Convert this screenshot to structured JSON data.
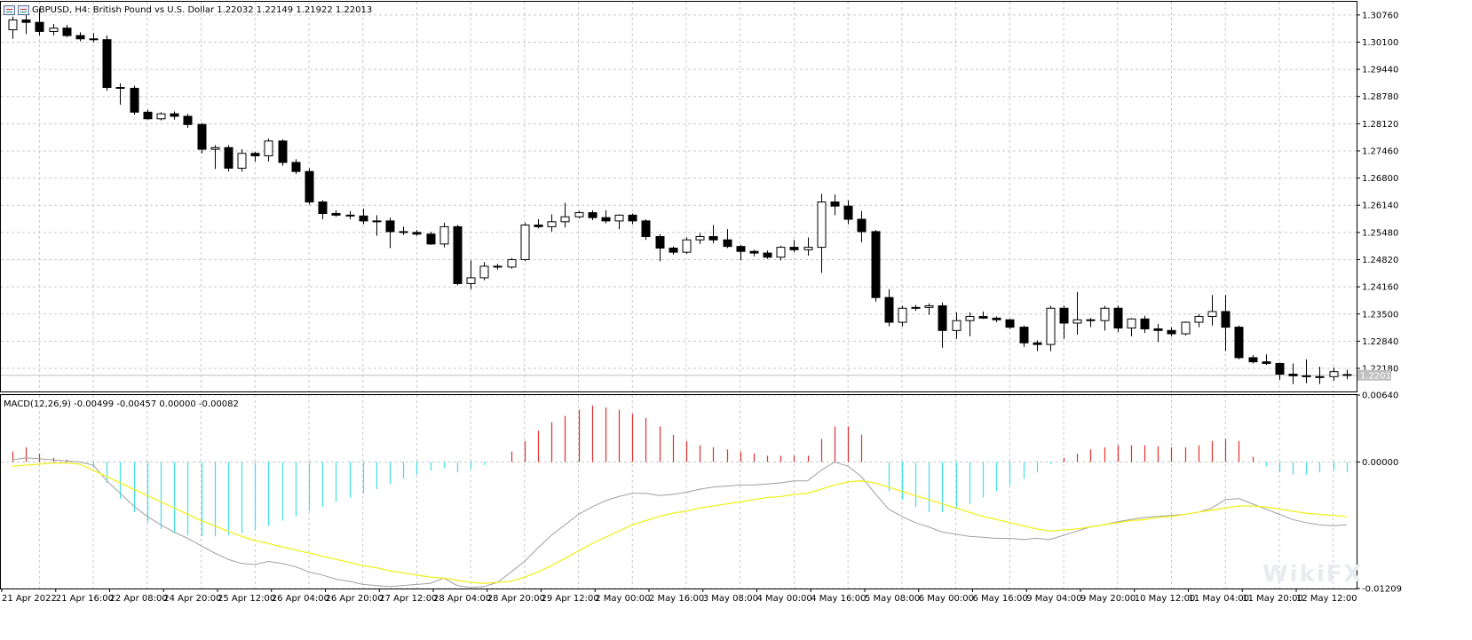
{
  "header": {
    "symbol_line": "GBPUSD, H4:  British Pound vs U.S. Dollar  1.22032 1.22149 1.21922 1.22013"
  },
  "macd_header": "MACD(12,26,9) -0.00499 -0.00457 0.00000 -0.00082",
  "watermark": "WikiFX",
  "colors": {
    "background": "#ffffff",
    "grid": "#c8c8c8",
    "bull_body": "#ffffff",
    "bear_body": "#000000",
    "hist_positive": "#e03030",
    "hist_negative": "#40e0e8",
    "macd_line": "#a0a0a0",
    "signal_line": "#f0f020",
    "price_tag": "#c0c0c0"
  },
  "chart_data": [
    {
      "type": "candlestick",
      "title": "GBPUSD, H4",
      "ylim": [
        1.2162,
        1.3108
      ],
      "y_ticks": [
        "1.30760",
        "1.30100",
        "1.29440",
        "1.28780",
        "1.28120",
        "1.27460",
        "1.26800",
        "1.26140",
        "1.25480",
        "1.24820",
        "1.24160",
        "1.23500",
        "1.22840",
        "1.22180"
      ],
      "current_price": "1.22013",
      "x_ticks": [
        {
          "bar": 0,
          "label": "21 Apr 2022"
        },
        {
          "bar": 4,
          "label": "21 Apr 16:00"
        },
        {
          "bar": 8,
          "label": "22 Apr 08:00"
        },
        {
          "bar": 12,
          "label": "24 Apr 20:00"
        },
        {
          "bar": 16,
          "label": "25 Apr 12:00"
        },
        {
          "bar": 20,
          "label": "26 Apr 04:00"
        },
        {
          "bar": 24,
          "label": "26 Apr 20:00"
        },
        {
          "bar": 28,
          "label": "27 Apr 12:00"
        },
        {
          "bar": 32,
          "label": "28 Apr 04:00"
        },
        {
          "bar": 36,
          "label": "28 Apr 20:00"
        },
        {
          "bar": 40,
          "label": "29 Apr 12:00"
        },
        {
          "bar": 44,
          "label": "2 May 00:00"
        },
        {
          "bar": 48,
          "label": "2 May 16:00"
        },
        {
          "bar": 52,
          "label": "3 May 08:00"
        },
        {
          "bar": 56,
          "label": "4 May 00:00"
        },
        {
          "bar": 60,
          "label": "4 May 16:00"
        },
        {
          "bar": 64,
          "label": "5 May 08:00"
        },
        {
          "bar": 68,
          "label": "6 May 00:00"
        },
        {
          "bar": 72,
          "label": "6 May 16:00"
        },
        {
          "bar": 76,
          "label": "9 May 04:00"
        },
        {
          "bar": 80,
          "label": "9 May 20:00"
        },
        {
          "bar": 84,
          "label": "10 May 12:00"
        },
        {
          "bar": 88,
          "label": "11 May 04:00"
        },
        {
          "bar": 92,
          "label": "11 May 20:00"
        },
        {
          "bar": 96,
          "label": "12 May 12:00"
        }
      ],
      "ohlc": [
        [
          1.304,
          1.3072,
          1.3018,
          1.3064
        ],
        [
          1.3064,
          1.309,
          1.303,
          1.3058
        ],
        [
          1.3058,
          1.3092,
          1.3026,
          1.3036
        ],
        [
          1.3036,
          1.3054,
          1.3026,
          1.3044
        ],
        [
          1.3044,
          1.3052,
          1.3022,
          1.3026
        ],
        [
          1.3026,
          1.3034,
          1.3012,
          1.3018
        ],
        [
          1.3018,
          1.3032,
          1.301,
          1.3016
        ],
        [
          1.3016,
          1.3026,
          1.2892,
          1.29
        ],
        [
          1.29,
          1.291,
          1.2858,
          1.2898
        ],
        [
          1.2898,
          1.2904,
          1.2834,
          1.284
        ],
        [
          1.284,
          1.2846,
          1.2822,
          1.2824
        ],
        [
          1.2824,
          1.284,
          1.282,
          1.2836
        ],
        [
          1.2836,
          1.2842,
          1.2822,
          1.283
        ],
        [
          1.283,
          1.2836,
          1.2802,
          1.281
        ],
        [
          1.281,
          1.2814,
          1.274,
          1.275
        ],
        [
          1.275,
          1.276,
          1.2702,
          1.2754
        ],
        [
          1.2754,
          1.276,
          1.2696,
          1.2704
        ],
        [
          1.2704,
          1.275,
          1.2696,
          1.274
        ],
        [
          1.274,
          1.2744,
          1.272,
          1.2734
        ],
        [
          1.2734,
          1.2776,
          1.272,
          1.277
        ],
        [
          1.277,
          1.2774,
          1.271,
          1.2718
        ],
        [
          1.2718,
          1.2726,
          1.269,
          1.2696
        ],
        [
          1.2696,
          1.2704,
          1.2616,
          1.2622
        ],
        [
          1.2622,
          1.2626,
          1.258,
          1.2594
        ],
        [
          1.2594,
          1.2602,
          1.2586,
          1.259
        ],
        [
          1.259,
          1.26,
          1.258,
          1.2588
        ],
        [
          1.2588,
          1.2606,
          1.2568,
          1.2576
        ],
        [
          1.2576,
          1.259,
          1.254,
          1.2576
        ],
        [
          1.2576,
          1.2584,
          1.251,
          1.255
        ],
        [
          1.255,
          1.2562,
          1.2542,
          1.2548
        ],
        [
          1.2548,
          1.2554,
          1.254,
          1.2544
        ],
        [
          1.2544,
          1.255,
          1.2518,
          1.252
        ],
        [
          1.252,
          1.2572,
          1.2512,
          1.2562
        ],
        [
          1.2562,
          1.2566,
          1.242,
          1.2424
        ],
        [
          1.2424,
          1.248,
          1.241,
          1.2438
        ],
        [
          1.2438,
          1.2476,
          1.2432,
          1.2466
        ],
        [
          1.2466,
          1.2472,
          1.2458,
          1.2464
        ],
        [
          1.2464,
          1.2486,
          1.246,
          1.2482
        ],
        [
          1.2482,
          1.2572,
          1.2478,
          1.2566
        ],
        [
          1.2566,
          1.258,
          1.2558,
          1.2562
        ],
        [
          1.2562,
          1.2592,
          1.255,
          1.2574
        ],
        [
          1.2574,
          1.262,
          1.256,
          1.2586
        ],
        [
          1.2586,
          1.26,
          1.2582,
          1.2596
        ],
        [
          1.2596,
          1.2602,
          1.2578,
          1.2584
        ],
        [
          1.2584,
          1.2602,
          1.257,
          1.2576
        ],
        [
          1.2576,
          1.2592,
          1.2556,
          1.259
        ],
        [
          1.259,
          1.2594,
          1.2568,
          1.2576
        ],
        [
          1.2576,
          1.258,
          1.253,
          1.2538
        ],
        [
          1.2538,
          1.2544,
          1.2478,
          1.251
        ],
        [
          1.251,
          1.2514,
          1.2494,
          1.25
        ],
        [
          1.25,
          1.2536,
          1.2496,
          1.253
        ],
        [
          1.253,
          1.2546,
          1.252,
          1.2538
        ],
        [
          1.2538,
          1.2566,
          1.2522,
          1.253
        ],
        [
          1.253,
          1.2556,
          1.251,
          1.2514
        ],
        [
          1.2514,
          1.2518,
          1.248,
          1.2502
        ],
        [
          1.2502,
          1.2506,
          1.249,
          1.2498
        ],
        [
          1.2498,
          1.2504,
          1.2484,
          1.2488
        ],
        [
          1.2488,
          1.2516,
          1.248,
          1.2512
        ],
        [
          1.2512,
          1.253,
          1.25,
          1.2506
        ],
        [
          1.2506,
          1.2536,
          1.2492,
          1.2512
        ],
        [
          1.2512,
          1.2642,
          1.245,
          1.2622
        ],
        [
          1.2622,
          1.264,
          1.259,
          1.2612
        ],
        [
          1.2612,
          1.2626,
          1.2568,
          1.258
        ],
        [
          1.258,
          1.26,
          1.2524,
          1.255
        ],
        [
          1.255,
          1.2554,
          1.238,
          1.239
        ],
        [
          1.239,
          1.241,
          1.232,
          1.233
        ],
        [
          1.233,
          1.237,
          1.232,
          1.2364
        ],
        [
          1.2364,
          1.2372,
          1.2358,
          1.2366
        ],
        [
          1.2366,
          1.2376,
          1.2348,
          1.237
        ],
        [
          1.237,
          1.2378,
          1.2268,
          1.231
        ],
        [
          1.231,
          1.2354,
          1.229,
          1.2334
        ],
        [
          1.2334,
          1.2354,
          1.2296,
          1.2344
        ],
        [
          1.2344,
          1.2356,
          1.2338,
          1.234
        ],
        [
          1.234,
          1.2344,
          1.233,
          1.2336
        ],
        [
          1.2336,
          1.2338,
          1.2314,
          1.2318
        ],
        [
          1.2318,
          1.2322,
          1.227,
          1.228
        ],
        [
          1.228,
          1.2286,
          1.226,
          1.2276
        ],
        [
          1.2276,
          1.237,
          1.226,
          1.2364
        ],
        [
          1.2364,
          1.237,
          1.229,
          1.2328
        ],
        [
          1.2328,
          1.2404,
          1.23,
          1.2336
        ],
        [
          1.2336,
          1.234,
          1.2318,
          1.2334
        ],
        [
          1.2334,
          1.237,
          1.231,
          1.2364
        ],
        [
          1.2364,
          1.237,
          1.2306,
          1.2316
        ],
        [
          1.2316,
          1.234,
          1.2296,
          1.2338
        ],
        [
          1.2338,
          1.2346,
          1.2304,
          1.2314
        ],
        [
          1.2314,
          1.2326,
          1.2282,
          1.231
        ],
        [
          1.231,
          1.2318,
          1.2296,
          1.2302
        ],
        [
          1.2302,
          1.2332,
          1.2298,
          1.233
        ],
        [
          1.233,
          1.235,
          1.2318,
          1.2344
        ],
        [
          1.2344,
          1.2396,
          1.2322,
          1.2356
        ],
        [
          1.2356,
          1.2396,
          1.226,
          1.2318
        ],
        [
          1.2318,
          1.2322,
          1.224,
          1.2244
        ],
        [
          1.2244,
          1.225,
          1.223,
          1.2234
        ],
        [
          1.2234,
          1.2252,
          1.2226,
          1.223
        ],
        [
          1.223,
          1.2232,
          1.219,
          1.2204
        ],
        [
          1.2204,
          1.223,
          1.218,
          1.22
        ],
        [
          1.22,
          1.224,
          1.2182,
          1.2198
        ],
        [
          1.2198,
          1.2222,
          1.218,
          1.2198
        ],
        [
          1.2198,
          1.222,
          1.2188,
          1.221
        ],
        [
          1.2203,
          1.2215,
          1.2192,
          1.2201
        ]
      ]
    },
    {
      "type": "macd",
      "title": "MACD(12,26,9)",
      "ylim": [
        -0.01209,
        0.0064
      ],
      "y_ticks": [
        "0.00640",
        "0.00000",
        "-0.01209"
      ],
      "histogram": [
        0.001,
        0.0014,
        0.0008,
        0.0004,
        0.0002,
        0.0,
        -0.0005,
        -0.002,
        -0.0035,
        -0.0048,
        -0.0058,
        -0.0064,
        -0.0068,
        -0.007,
        -0.0071,
        -0.0071,
        -0.007,
        -0.0068,
        -0.0065,
        -0.0061,
        -0.0056,
        -0.0052,
        -0.0047,
        -0.0043,
        -0.0038,
        -0.0034,
        -0.003,
        -0.0026,
        -0.0021,
        -0.0016,
        -0.0012,
        -0.0008,
        -0.0006,
        -0.001,
        -0.0007,
        -0.0003,
        0.0,
        0.001,
        0.002,
        0.003,
        0.0038,
        0.0044,
        0.005,
        0.0054,
        0.0052,
        0.005,
        0.0046,
        0.0042,
        0.0034,
        0.0026,
        0.002,
        0.0016,
        0.0014,
        0.0012,
        0.001,
        0.0008,
        0.0006,
        0.0006,
        0.0006,
        0.0006,
        0.0022,
        0.0034,
        0.0034,
        0.0026,
        0.0,
        -0.0028,
        -0.0036,
        -0.0043,
        -0.0048,
        -0.0048,
        -0.0044,
        -0.004,
        -0.0034,
        -0.0028,
        -0.0022,
        -0.0016,
        -0.001,
        -0.0002,
        0.0004,
        0.0008,
        0.0012,
        0.0014,
        0.0016,
        0.0016,
        0.0016,
        0.0015,
        0.0014,
        0.0014,
        0.0016,
        0.002,
        0.0022,
        0.002,
        0.0005,
        -0.0004,
        -0.001,
        -0.0012,
        -0.0012,
        -0.001,
        -0.0008,
        -0.001
      ],
      "macd": [
        0.0002,
        0.0004,
        0.0003,
        0.0002,
        0.0001,
        0.0,
        -0.0003,
        -0.0018,
        -0.003,
        -0.0042,
        -0.0052,
        -0.006,
        -0.0067,
        -0.0073,
        -0.008,
        -0.0087,
        -0.0093,
        -0.0097,
        -0.0098,
        -0.0095,
        -0.0097,
        -0.01,
        -0.0105,
        -0.0108,
        -0.0112,
        -0.0114,
        -0.0117,
        -0.0118,
        -0.0119,
        -0.0118,
        -0.0117,
        -0.0116,
        -0.0111,
        -0.0118,
        -0.012,
        -0.0119,
        -0.0115,
        -0.0105,
        -0.0095,
        -0.0082,
        -0.007,
        -0.006,
        -0.005,
        -0.0043,
        -0.0037,
        -0.0033,
        -0.003,
        -0.003,
        -0.0032,
        -0.0031,
        -0.0029,
        -0.0026,
        -0.0024,
        -0.0023,
        -0.0022,
        -0.0022,
        -0.0021,
        -0.002,
        -0.0018,
        -0.0018,
        -0.0008,
        0.0,
        -0.0004,
        -0.0014,
        -0.003,
        -0.0045,
        -0.0052,
        -0.0058,
        -0.0062,
        -0.0067,
        -0.0069,
        -0.0071,
        -0.0072,
        -0.0073,
        -0.0073,
        -0.0074,
        -0.0073,
        -0.0074,
        -0.007,
        -0.0066,
        -0.0062,
        -0.006,
        -0.0057,
        -0.0055,
        -0.0053,
        -0.0052,
        -0.0051,
        -0.005,
        -0.0048,
        -0.0044,
        -0.0036,
        -0.0035,
        -0.004,
        -0.0045,
        -0.005,
        -0.0055,
        -0.0058,
        -0.006,
        -0.0061,
        -0.006
      ],
      "signal": [
        -0.0004,
        -0.0003,
        -0.0002,
        -0.0001,
        -0.0001,
        -0.0002,
        -0.0008,
        -0.0014,
        -0.002,
        -0.0026,
        -0.0032,
        -0.0038,
        -0.0044,
        -0.005,
        -0.0056,
        -0.0061,
        -0.0066,
        -0.0071,
        -0.0075,
        -0.0078,
        -0.0081,
        -0.0084,
        -0.0087,
        -0.009,
        -0.0093,
        -0.0096,
        -0.0099,
        -0.0101,
        -0.0104,
        -0.0106,
        -0.0108,
        -0.011,
        -0.0111,
        -0.0113,
        -0.0115,
        -0.0116,
        -0.0115,
        -0.0114,
        -0.011,
        -0.0105,
        -0.0099,
        -0.0092,
        -0.0085,
        -0.0078,
        -0.0072,
        -0.0066,
        -0.006,
        -0.0056,
        -0.0052,
        -0.0049,
        -0.0047,
        -0.0044,
        -0.0042,
        -0.004,
        -0.0038,
        -0.0036,
        -0.0034,
        -0.0033,
        -0.0031,
        -0.003,
        -0.0026,
        -0.0022,
        -0.0019,
        -0.0018,
        -0.002,
        -0.0024,
        -0.0028,
        -0.0032,
        -0.0036,
        -0.004,
        -0.0044,
        -0.0048,
        -0.0052,
        -0.0055,
        -0.0058,
        -0.0061,
        -0.0064,
        -0.0066,
        -0.0065,
        -0.0064,
        -0.0062,
        -0.006,
        -0.0058,
        -0.0056,
        -0.0055,
        -0.0053,
        -0.0052,
        -0.005,
        -0.0048,
        -0.0046,
        -0.0044,
        -0.0042,
        -0.0042,
        -0.0043,
        -0.0045,
        -0.0047,
        -0.0049,
        -0.005,
        -0.0051,
        -0.0052
      ]
    }
  ]
}
